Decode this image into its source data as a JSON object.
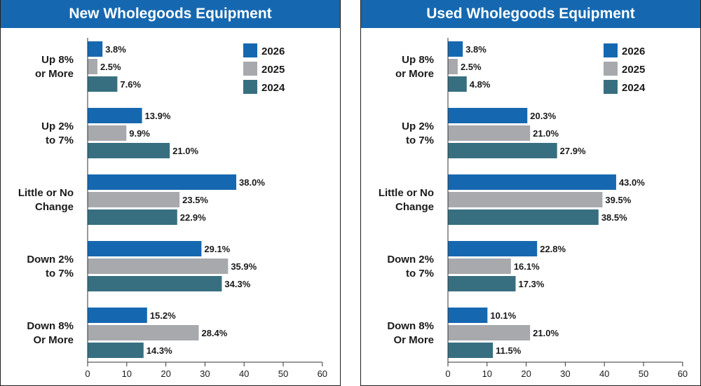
{
  "chart_data": [
    {
      "type": "bar",
      "orientation": "horizontal",
      "title": "New Wholegoods Equipment",
      "categories": [
        "Up 8%\nor More",
        "Up 2%\nto 7%",
        "Little or No\nChange",
        "Down 2%\nto 7%",
        "Down 8%\nOr More"
      ],
      "series": [
        {
          "name": "2026",
          "values": [
            3.8,
            13.9,
            38.0,
            29.1,
            15.2
          ],
          "color": "#1568b0"
        },
        {
          "name": "2025",
          "values": [
            2.5,
            9.9,
            23.5,
            35.9,
            28.4
          ],
          "color": "#a7a9ad"
        },
        {
          "name": "2024",
          "values": [
            7.6,
            21.0,
            22.9,
            34.3,
            14.3
          ],
          "color": "#386f80"
        }
      ],
      "xlim": [
        0,
        60
      ],
      "xticks": [
        0,
        10,
        20,
        30,
        40,
        50,
        60
      ],
      "value_suffix": "%",
      "legend_position": "top-right",
      "grid": false
    },
    {
      "type": "bar",
      "orientation": "horizontal",
      "title": "Used Wholegoods Equipment",
      "categories": [
        "Up 8%\nor More",
        "Up 2%\nto 7%",
        "Little or No\nChange",
        "Down 2%\nto 7%",
        "Down 8%\nOr More"
      ],
      "series": [
        {
          "name": "2026",
          "values": [
            3.8,
            20.3,
            43.0,
            22.8,
            10.1
          ],
          "color": "#1568b0"
        },
        {
          "name": "2025",
          "values": [
            2.5,
            21.0,
            39.5,
            16.1,
            21.0
          ],
          "color": "#a7a9ad"
        },
        {
          "name": "2024",
          "values": [
            4.8,
            27.9,
            38.5,
            17.3,
            11.5
          ],
          "color": "#386f80"
        }
      ],
      "xlim": [
        0,
        60
      ],
      "xticks": [
        0,
        10,
        20,
        30,
        40,
        50,
        60
      ],
      "value_suffix": "%",
      "legend_position": "top-right",
      "grid": false
    }
  ]
}
